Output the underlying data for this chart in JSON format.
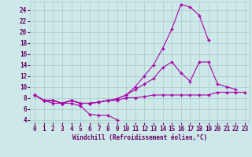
{
  "x": [
    0,
    1,
    2,
    3,
    4,
    5,
    6,
    7,
    8,
    9,
    10,
    11,
    12,
    13,
    14,
    15,
    16,
    17,
    18,
    19,
    20,
    21,
    22,
    23
  ],
  "line1": [
    8.5,
    7.5,
    7.0,
    7.0,
    7.0,
    6.5,
    5.0,
    4.8,
    4.8,
    4.0,
    null,
    null,
    null,
    null,
    null,
    null,
    null,
    null,
    null,
    null,
    null,
    null,
    null,
    null
  ],
  "line2": [
    8.5,
    7.5,
    7.5,
    7.0,
    7.5,
    7.0,
    7.0,
    7.2,
    7.5,
    7.5,
    8.0,
    8.0,
    8.2,
    8.5,
    8.5,
    8.5,
    8.5,
    8.5,
    8.5,
    8.5,
    9.0,
    9.0,
    9.0,
    9.0
  ],
  "line3": [
    8.5,
    7.5,
    7.5,
    7.0,
    7.5,
    7.0,
    7.0,
    7.2,
    7.5,
    7.8,
    8.5,
    9.5,
    10.5,
    11.5,
    13.5,
    14.5,
    12.5,
    11.0,
    14.5,
    14.5,
    10.5,
    10.0,
    9.5,
    null
  ],
  "line4": [
    8.5,
    7.5,
    7.5,
    7.0,
    7.5,
    7.0,
    7.0,
    7.2,
    7.5,
    7.8,
    8.5,
    10.0,
    12.0,
    14.0,
    17.0,
    20.5,
    25.0,
    24.5,
    23.0,
    18.5,
    null,
    null,
    null,
    null
  ],
  "color": "#aa00aa",
  "bg_color": "#cce8e8",
  "grid_color": "#aacccc",
  "xlabel": "Windchill (Refroidissement éolien,°C)",
  "ylim": [
    3.5,
    25.5
  ],
  "xlim": [
    -0.5,
    23.5
  ],
  "yticks": [
    4,
    6,
    8,
    10,
    12,
    14,
    16,
    18,
    20,
    22,
    24
  ],
  "xticks": [
    0,
    1,
    2,
    3,
    4,
    5,
    6,
    7,
    8,
    9,
    10,
    11,
    12,
    13,
    14,
    15,
    16,
    17,
    18,
    19,
    20,
    21,
    22,
    23
  ],
  "tick_color": "#660066",
  "label_fontsize": 5.5,
  "xlabel_fontsize": 5.5
}
